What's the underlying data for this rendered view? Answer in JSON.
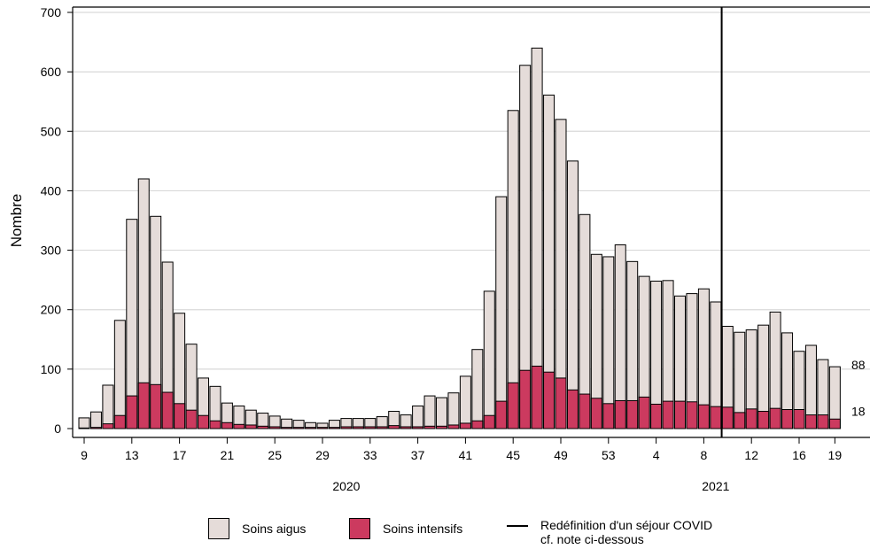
{
  "chart_data": {
    "type": "bar",
    "ylabel": "Nombre",
    "ylim": [
      0,
      700
    ],
    "yticks": [
      0,
      100,
      200,
      300,
      400,
      500,
      600,
      700
    ],
    "grid": true,
    "week_labels": [
      "9",
      "10",
      "11",
      "12",
      "13",
      "14",
      "15",
      "16",
      "17",
      "18",
      "19",
      "20",
      "21",
      "22",
      "23",
      "24",
      "25",
      "26",
      "27",
      "28",
      "29",
      "30",
      "31",
      "32",
      "33",
      "34",
      "35",
      "36",
      "37",
      "38",
      "39",
      "40",
      "41",
      "42",
      "43",
      "44",
      "45",
      "46",
      "47",
      "48",
      "49",
      "50",
      "51",
      "52",
      "53",
      "1",
      "2",
      "3",
      "4",
      "5",
      "6",
      "7",
      "8",
      "9",
      "10",
      "11",
      "12",
      "13",
      "14",
      "15",
      "16",
      "17",
      "18",
      "19"
    ],
    "xtick_labels": [
      "9",
      "13",
      "17",
      "21",
      "25",
      "29",
      "33",
      "37",
      "41",
      "45",
      "49",
      "53",
      "4",
      "8",
      "12",
      "16",
      "19"
    ],
    "year_labels": [
      {
        "label": "2020",
        "at_week_index": 22
      },
      {
        "label": "2021",
        "at_week_index": 53
      }
    ],
    "series": [
      {
        "name": "Soins aigus",
        "color": "#e5dcd9",
        "values": [
          18,
          28,
          73,
          182,
          352,
          420,
          357,
          280,
          194,
          142,
          85,
          71,
          43,
          38,
          31,
          26,
          21,
          16,
          14,
          10,
          9,
          14,
          17,
          17,
          17,
          20,
          29,
          23,
          38,
          55,
          52,
          60,
          88,
          133,
          231,
          390,
          535,
          611,
          640,
          561,
          520,
          450,
          360,
          293,
          289,
          309,
          281,
          256,
          248,
          249,
          223,
          227,
          235,
          213,
          172,
          162,
          166,
          174,
          196,
          161,
          130,
          140,
          116,
          104
        ]
      },
      {
        "name": "Soins intensifs",
        "color": "#cc3a5f",
        "values": [
          1,
          2,
          8,
          22,
          55,
          77,
          74,
          61,
          42,
          31,
          22,
          13,
          10,
          7,
          6,
          4,
          3,
          2,
          2,
          2,
          2,
          2,
          3,
          3,
          3,
          3,
          5,
          3,
          3,
          4,
          4,
          6,
          9,
          13,
          22,
          46,
          77,
          98,
          105,
          95,
          85,
          65,
          58,
          51,
          42,
          47,
          47,
          53,
          41,
          46,
          46,
          45,
          40,
          37,
          36,
          27,
          33,
          29,
          34,
          32,
          32,
          23,
          23,
          16
        ]
      }
    ],
    "annotations": [
      {
        "text": "88",
        "series": "Soins aigus"
      },
      {
        "text": "18",
        "series": "Soins intensifs"
      }
    ],
    "vertical_line": {
      "after_week_index": 53,
      "label": "Redéfinition d'un séjour COVID cf. note ci-dessous"
    }
  },
  "legend": {
    "acute_label": "Soins aigus",
    "icu_label": "Soins intensifs",
    "line_label_1": "Redéfinition d'un séjour COVID",
    "line_label_2": "cf. note ci-dessous"
  }
}
